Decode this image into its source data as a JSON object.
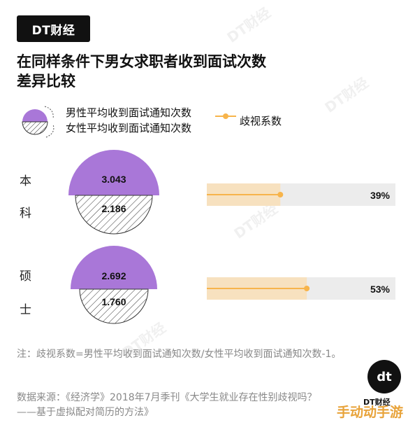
{
  "brand": {
    "logo": "DT财经",
    "corner_logo_text": "DT财经",
    "site_mark": "手动动手游"
  },
  "title_lines": [
    "在同样条件下男女求职者收到面试次数",
    "差异比较"
  ],
  "legend": {
    "male_label": "男性平均收到面试通知次数",
    "female_label": "女性平均收到面试通知次数",
    "coef_label": "歧视系数"
  },
  "colors": {
    "male": "#a977d8",
    "coef": "#f7b44b",
    "coef_fill": "#f7e1bf",
    "track": "#ececec"
  },
  "chart_data": {
    "type": "bar",
    "categories": [
      "本科",
      "硕士"
    ],
    "category_chars": [
      [
        "本",
        "科"
      ],
      [
        "硕",
        "士"
      ]
    ],
    "series": [
      {
        "name": "男性平均收到面试通知次数",
        "values": [
          3.043,
          2.692
        ],
        "labels": [
          "3.043",
          "2.692"
        ]
      },
      {
        "name": "女性平均收到面试通知次数",
        "values": [
          2.186,
          1.76
        ],
        "labels": [
          "2.186",
          "1.760"
        ]
      },
      {
        "name": "歧视系数",
        "values": [
          0.39,
          0.53
        ],
        "labels": [
          "39%",
          "53%"
        ]
      }
    ],
    "coef_axis_max": 1.0
  },
  "note": "注：歧视系数=男性平均收到面试通知次数/女性平均收到面试通知次数-1。",
  "source": "数据来源：《经济学》2018年7月季刊《大学生就业存在性别歧视吗？——基于虚拟配对简历的方法》"
}
